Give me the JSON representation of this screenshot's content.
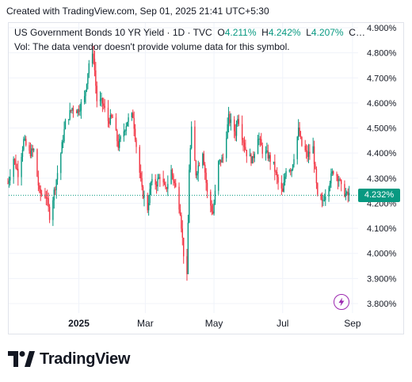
{
  "header": {
    "text": "Created with TradingView.com, Sep 01, 2025 21:41 UTC+5:30"
  },
  "legend": {
    "symbol": "US Government Bonds 10 YR Yield · 1D · TVC",
    "open_label": "O",
    "open_value": "4.211%",
    "high_label": "H",
    "high_value": "4.242%",
    "low_label": "L",
    "low_value": "4.207%",
    "close_label": "C…",
    "volume_note": "Vol: The data vendor doesn't provide volume data for this symbol."
  },
  "last_price_label": "4.232%",
  "footer": {
    "brand": "TradingView"
  },
  "colors": {
    "up": "#089981",
    "down": "#f23645",
    "grid": "#f0f3fa",
    "text": "#131722"
  },
  "icons": {
    "replay": "lightning-icon",
    "logo": "tradingview-logo-icon"
  },
  "chart_data": {
    "type": "candlestick",
    "unit": "%",
    "y_ticks": [
      "4.900%",
      "4.800%",
      "4.700%",
      "4.600%",
      "4.500%",
      "4.400%",
      "4.300%",
      "4.200%",
      "4.100%",
      "4.000%",
      "3.900%",
      "3.800%"
    ],
    "ylim": [
      3.76,
      4.91
    ],
    "x_ticks": [
      {
        "label": "2025",
        "date": "2025-01-01"
      },
      {
        "label": "Mar",
        "date": "2025-03-01"
      },
      {
        "label": "May",
        "date": "2025-05-01"
      },
      {
        "label": "Jul",
        "date": "2025-07-01"
      },
      {
        "label": "Sep",
        "date": "2025-09-01"
      }
    ],
    "xlim": [
      "2024-10-30",
      "2025-09-06"
    ],
    "last_value": 4.232,
    "close_path": [
      [
        "2024-10-30",
        4.28
      ],
      [
        "2024-11-04",
        4.38
      ],
      [
        "2024-11-08",
        4.32
      ],
      [
        "2024-11-13",
        4.45
      ],
      [
        "2024-11-18",
        4.4
      ],
      [
        "2024-11-22",
        4.41
      ],
      [
        "2024-11-27",
        4.24
      ],
      [
        "2024-12-03",
        4.23
      ],
      [
        "2024-12-06",
        4.15
      ],
      [
        "2024-12-11",
        4.27
      ],
      [
        "2024-12-16",
        4.4
      ],
      [
        "2024-12-20",
        4.52
      ],
      [
        "2024-12-26",
        4.58
      ],
      [
        "2024-12-31",
        4.57
      ],
      [
        "2025-01-06",
        4.62
      ],
      [
        "2025-01-10",
        4.76
      ],
      [
        "2025-01-14",
        4.79
      ],
      [
        "2025-01-17",
        4.61
      ],
      [
        "2025-01-22",
        4.6
      ],
      [
        "2025-01-27",
        4.53
      ],
      [
        "2025-01-31",
        4.54
      ],
      [
        "2025-02-05",
        4.43
      ],
      [
        "2025-02-10",
        4.49
      ],
      [
        "2025-02-13",
        4.53
      ],
      [
        "2025-02-18",
        4.55
      ],
      [
        "2025-02-21",
        4.43
      ],
      [
        "2025-02-26",
        4.25
      ],
      [
        "2025-03-03",
        4.18
      ],
      [
        "2025-03-06",
        4.28
      ],
      [
        "2025-03-11",
        4.28
      ],
      [
        "2025-03-14",
        4.31
      ],
      [
        "2025-03-19",
        4.25
      ],
      [
        "2025-03-24",
        4.33
      ],
      [
        "2025-03-28",
        4.26
      ],
      [
        "2025-04-01",
        4.17
      ],
      [
        "2025-04-04",
        4.0
      ],
      [
        "2025-04-07",
        3.9
      ],
      [
        "2025-04-09",
        4.34
      ],
      [
        "2025-04-11",
        4.49
      ],
      [
        "2025-04-15",
        4.32
      ],
      [
        "2025-04-21",
        4.41
      ],
      [
        "2025-04-25",
        4.24
      ],
      [
        "2025-04-30",
        4.16
      ],
      [
        "2025-05-05",
        4.36
      ],
      [
        "2025-05-09",
        4.38
      ],
      [
        "2025-05-14",
        4.54
      ],
      [
        "2025-05-20",
        4.48
      ],
      [
        "2025-05-22",
        4.55
      ],
      [
        "2025-05-27",
        4.45
      ],
      [
        "2025-05-30",
        4.4
      ],
      [
        "2025-06-04",
        4.37
      ],
      [
        "2025-06-09",
        4.47
      ],
      [
        "2025-06-13",
        4.41
      ],
      [
        "2025-06-18",
        4.39
      ],
      [
        "2025-06-23",
        4.35
      ],
      [
        "2025-06-27",
        4.28
      ],
      [
        "2025-07-01",
        4.24
      ],
      [
        "2025-07-04",
        4.34
      ],
      [
        "2025-07-09",
        4.34
      ],
      [
        "2025-07-15",
        4.49
      ],
      [
        "2025-07-18",
        4.43
      ],
      [
        "2025-07-23",
        4.39
      ],
      [
        "2025-07-28",
        4.42
      ],
      [
        "2025-08-01",
        4.22
      ],
      [
        "2025-08-05",
        4.2
      ],
      [
        "2025-08-11",
        4.28
      ],
      [
        "2025-08-15",
        4.33
      ],
      [
        "2025-08-20",
        4.3
      ],
      [
        "2025-08-22",
        4.26
      ],
      [
        "2025-08-27",
        4.23
      ],
      [
        "2025-08-29",
        4.232
      ]
    ]
  }
}
